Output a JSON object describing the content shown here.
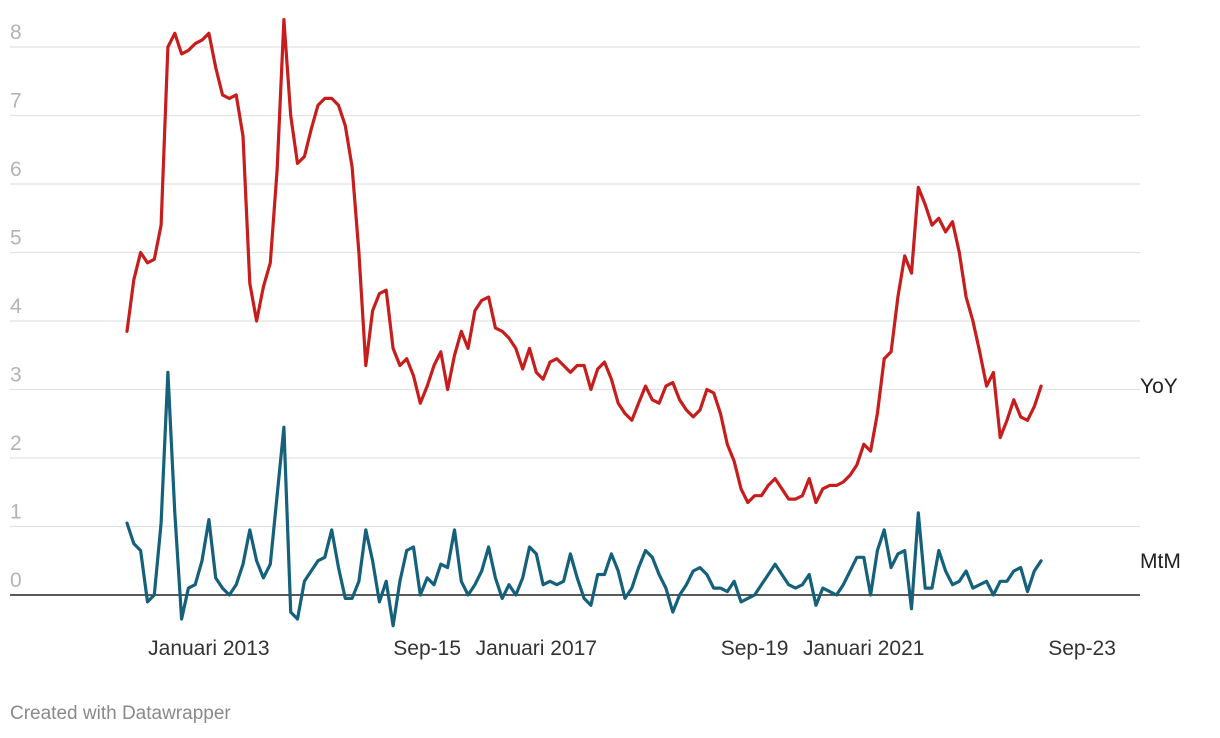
{
  "chart_data": {
    "type": "line",
    "title": "",
    "xlabel": "",
    "ylabel": "",
    "ylim": [
      -0.5,
      8.3
    ],
    "yticks": [
      0,
      1,
      2,
      3,
      4,
      5,
      6,
      7,
      8
    ],
    "grid": true,
    "x_start": "2012-01",
    "x_end": "2024-03",
    "x_tick_labels": [
      {
        "label": "Januari 2013",
        "date": "2013-01"
      },
      {
        "label": "Sep-15",
        "date": "2015-09"
      },
      {
        "label": "Januari 2017",
        "date": "2017-01"
      },
      {
        "label": "Sep-19",
        "date": "2019-09"
      },
      {
        "label": "Januari 2021",
        "date": "2021-01"
      },
      {
        "label": "Sep-23",
        "date": "2023-09"
      }
    ],
    "series": [
      {
        "name": "YoY",
        "color": "#c71e1d",
        "anchors": [
          [
            "2012-01",
            3.85
          ],
          [
            "2012-02",
            4.6
          ],
          [
            "2012-03",
            5.0
          ],
          [
            "2012-04",
            4.85
          ],
          [
            "2012-05",
            4.9
          ],
          [
            "2012-06",
            5.4
          ],
          [
            "2012-07",
            8.0
          ],
          [
            "2012-08",
            8.2
          ],
          [
            "2012-09",
            7.9
          ],
          [
            "2012-10",
            7.95
          ],
          [
            "2012-11",
            8.05
          ],
          [
            "2012-12",
            8.1
          ],
          [
            "2013-01",
            8.2
          ],
          [
            "2013-02",
            7.7
          ],
          [
            "2013-03",
            7.3
          ],
          [
            "2013-04",
            7.25
          ],
          [
            "2013-05",
            7.3
          ],
          [
            "2013-06",
            6.7
          ],
          [
            "2013-07",
            4.55
          ],
          [
            "2013-08",
            4.0
          ],
          [
            "2013-09",
            4.5
          ],
          [
            "2013-10",
            4.85
          ],
          [
            "2013-11",
            6.2
          ],
          [
            "2013-12",
            8.4
          ],
          [
            "2014-01",
            7.0
          ],
          [
            "2014-02",
            6.3
          ],
          [
            "2014-03",
            6.4
          ],
          [
            "2014-04",
            6.8
          ],
          [
            "2014-05",
            7.15
          ],
          [
            "2014-06",
            7.25
          ],
          [
            "2014-07",
            7.25
          ],
          [
            "2014-08",
            7.15
          ],
          [
            "2014-09",
            6.85
          ],
          [
            "2014-10",
            6.25
          ],
          [
            "2014-11",
            5.0
          ],
          [
            "2014-12",
            3.35
          ],
          [
            "2015-01",
            4.15
          ],
          [
            "2015-02",
            4.4
          ],
          [
            "2015-03",
            4.45
          ],
          [
            "2015-04",
            3.6
          ],
          [
            "2015-05",
            3.35
          ],
          [
            "2015-06",
            3.45
          ],
          [
            "2015-07",
            3.2
          ],
          [
            "2015-08",
            2.8
          ],
          [
            "2015-09",
            3.05
          ],
          [
            "2015-10",
            3.35
          ],
          [
            "2015-11",
            3.55
          ],
          [
            "2015-12",
            3.0
          ],
          [
            "2016-01",
            3.5
          ],
          [
            "2016-02",
            3.85
          ],
          [
            "2016-03",
            3.6
          ],
          [
            "2016-04",
            4.15
          ],
          [
            "2016-05",
            4.3
          ],
          [
            "2016-06",
            4.35
          ],
          [
            "2016-07",
            3.9
          ],
          [
            "2016-08",
            3.85
          ],
          [
            "2016-09",
            3.75
          ],
          [
            "2016-10",
            3.6
          ],
          [
            "2016-11",
            3.3
          ],
          [
            "2016-12",
            3.6
          ],
          [
            "2017-01",
            3.25
          ],
          [
            "2017-02",
            3.15
          ],
          [
            "2017-03",
            3.4
          ],
          [
            "2017-04",
            3.45
          ],
          [
            "2017-05",
            3.35
          ],
          [
            "2017-06",
            3.25
          ],
          [
            "2017-07",
            3.35
          ],
          [
            "2017-08",
            3.35
          ],
          [
            "2017-09",
            3.0
          ],
          [
            "2017-10",
            3.3
          ],
          [
            "2017-11",
            3.4
          ],
          [
            "2017-12",
            3.15
          ],
          [
            "2018-01",
            2.8
          ],
          [
            "2018-02",
            2.65
          ],
          [
            "2018-03",
            2.55
          ],
          [
            "2018-04",
            2.8
          ],
          [
            "2018-05",
            3.05
          ],
          [
            "2018-06",
            2.85
          ],
          [
            "2018-07",
            2.8
          ],
          [
            "2018-08",
            3.05
          ],
          [
            "2018-09",
            3.1
          ],
          [
            "2018-10",
            2.85
          ],
          [
            "2018-11",
            2.7
          ],
          [
            "2018-12",
            2.6
          ],
          [
            "2019-01",
            2.7
          ],
          [
            "2019-02",
            3.0
          ],
          [
            "2019-03",
            2.95
          ],
          [
            "2019-04",
            2.65
          ],
          [
            "2019-05",
            2.2
          ],
          [
            "2019-06",
            1.95
          ],
          [
            "2019-07",
            1.55
          ],
          [
            "2019-08",
            1.35
          ],
          [
            "2019-09",
            1.45
          ],
          [
            "2019-10",
            1.45
          ],
          [
            "2019-11",
            1.6
          ],
          [
            "2019-12",
            1.7
          ],
          [
            "2020-01",
            1.55
          ],
          [
            "2020-02",
            1.4
          ],
          [
            "2020-03",
            1.4
          ],
          [
            "2020-04",
            1.45
          ],
          [
            "2020-05",
            1.7
          ],
          [
            "2020-06",
            1.35
          ],
          [
            "2020-07",
            1.55
          ],
          [
            "2020-08",
            1.6
          ],
          [
            "2020-09",
            1.6
          ],
          [
            "2020-10",
            1.65
          ],
          [
            "2020-11",
            1.75
          ],
          [
            "2020-12",
            1.9
          ],
          [
            "2021-01",
            2.2
          ],
          [
            "2021-02",
            2.1
          ],
          [
            "2021-03",
            2.65
          ],
          [
            "2021-04",
            3.45
          ],
          [
            "2021-05",
            3.55
          ],
          [
            "2021-06",
            4.35
          ],
          [
            "2021-07",
            4.95
          ],
          [
            "2021-08",
            4.7
          ],
          [
            "2021-09",
            5.95
          ],
          [
            "2021-10",
            5.7
          ],
          [
            "2021-11",
            5.4
          ],
          [
            "2021-12",
            5.5
          ],
          [
            "2022-01",
            5.3
          ],
          [
            "2022-02",
            5.45
          ],
          [
            "2022-03",
            5.0
          ],
          [
            "2022-04",
            4.35
          ],
          [
            "2022-05",
            4.0
          ],
          [
            "2022-06",
            3.55
          ],
          [
            "2022-07",
            3.05
          ],
          [
            "2022-08",
            3.25
          ],
          [
            "2022-09",
            2.3
          ],
          [
            "2022-10",
            2.55
          ],
          [
            "2022-11",
            2.85
          ],
          [
            "2022-12",
            2.6
          ],
          [
            "2023-01",
            2.55
          ],
          [
            "2023-02",
            2.75
          ],
          [
            "2023-03",
            3.05
          ]
        ]
      },
      {
        "name": "MtM",
        "color": "#15607a",
        "anchors": [
          [
            "2012-01",
            1.05
          ],
          [
            "2012-02",
            0.75
          ],
          [
            "2012-03",
            0.65
          ],
          [
            "2012-04",
            -0.1
          ],
          [
            "2012-05",
            0.0
          ],
          [
            "2012-06",
            1.05
          ],
          [
            "2012-07",
            3.25
          ],
          [
            "2012-08",
            1.2
          ],
          [
            "2012-09",
            -0.35
          ],
          [
            "2012-10",
            0.1
          ],
          [
            "2012-11",
            0.15
          ],
          [
            "2012-12",
            0.5
          ],
          [
            "2013-01",
            1.1
          ],
          [
            "2013-02",
            0.25
          ],
          [
            "2013-03",
            0.1
          ],
          [
            "2013-04",
            0.0
          ],
          [
            "2013-05",
            0.15
          ],
          [
            "2013-06",
            0.45
          ],
          [
            "2013-07",
            0.95
          ],
          [
            "2013-08",
            0.5
          ],
          [
            "2013-09",
            0.25
          ],
          [
            "2013-10",
            0.45
          ],
          [
            "2013-11",
            1.45
          ],
          [
            "2013-12",
            2.45
          ],
          [
            "2014-01",
            -0.25
          ],
          [
            "2014-02",
            -0.35
          ],
          [
            "2014-03",
            0.2
          ],
          [
            "2014-04",
            0.35
          ],
          [
            "2014-05",
            0.5
          ],
          [
            "2014-06",
            0.55
          ],
          [
            "2014-07",
            0.95
          ],
          [
            "2014-08",
            0.4
          ],
          [
            "2014-09",
            -0.05
          ],
          [
            "2014-10",
            -0.05
          ],
          [
            "2014-11",
            0.2
          ],
          [
            "2014-12",
            0.95
          ],
          [
            "2015-01",
            0.5
          ],
          [
            "2015-02",
            -0.1
          ],
          [
            "2015-03",
            0.2
          ],
          [
            "2015-04",
            -0.45
          ],
          [
            "2015-05",
            0.2
          ],
          [
            "2015-06",
            0.65
          ],
          [
            "2015-07",
            0.7
          ],
          [
            "2015-08",
            0.0
          ],
          [
            "2015-09",
            0.25
          ],
          [
            "2015-10",
            0.15
          ],
          [
            "2015-11",
            0.45
          ],
          [
            "2015-12",
            0.4
          ],
          [
            "2016-01",
            0.95
          ],
          [
            "2016-02",
            0.2
          ],
          [
            "2016-03",
            0.0
          ],
          [
            "2016-04",
            0.15
          ],
          [
            "2016-05",
            0.35
          ],
          [
            "2016-06",
            0.7
          ],
          [
            "2016-07",
            0.25
          ],
          [
            "2016-08",
            -0.05
          ],
          [
            "2016-09",
            0.15
          ],
          [
            "2016-10",
            0.0
          ],
          [
            "2016-11",
            0.25
          ],
          [
            "2016-12",
            0.7
          ],
          [
            "2017-01",
            0.6
          ],
          [
            "2017-02",
            0.15
          ],
          [
            "2017-03",
            0.2
          ],
          [
            "2017-04",
            0.15
          ],
          [
            "2017-05",
            0.2
          ],
          [
            "2017-06",
            0.6
          ],
          [
            "2017-07",
            0.25
          ],
          [
            "2017-08",
            -0.05
          ],
          [
            "2017-09",
            -0.15
          ],
          [
            "2017-10",
            0.3
          ],
          [
            "2017-11",
            0.3
          ],
          [
            "2017-12",
            0.6
          ],
          [
            "2018-01",
            0.35
          ],
          [
            "2018-02",
            -0.05
          ],
          [
            "2018-03",
            0.1
          ],
          [
            "2018-04",
            0.4
          ],
          [
            "2018-05",
            0.65
          ],
          [
            "2018-06",
            0.55
          ],
          [
            "2018-07",
            0.3
          ],
          [
            "2018-08",
            0.1
          ],
          [
            "2018-09",
            -0.25
          ],
          [
            "2018-10",
            0.0
          ],
          [
            "2018-11",
            0.15
          ],
          [
            "2018-12",
            0.35
          ],
          [
            "2019-01",
            0.4
          ],
          [
            "2019-02",
            0.3
          ],
          [
            "2019-03",
            0.1
          ],
          [
            "2019-04",
            0.1
          ],
          [
            "2019-05",
            0.05
          ],
          [
            "2019-06",
            0.2
          ],
          [
            "2019-07",
            -0.1
          ],
          [
            "2019-08",
            -0.05
          ],
          [
            "2019-09",
            0.0
          ],
          [
            "2019-10",
            0.15
          ],
          [
            "2019-11",
            0.3
          ],
          [
            "2019-12",
            0.45
          ],
          [
            "2020-01",
            0.3
          ],
          [
            "2020-02",
            0.15
          ],
          [
            "2020-03",
            0.1
          ],
          [
            "2020-04",
            0.15
          ],
          [
            "2020-05",
            0.3
          ],
          [
            "2020-06",
            -0.15
          ],
          [
            "2020-07",
            0.1
          ],
          [
            "2020-08",
            0.05
          ],
          [
            "2020-09",
            0.0
          ],
          [
            "2020-10",
            0.15
          ],
          [
            "2020-11",
            0.35
          ],
          [
            "2020-12",
            0.55
          ],
          [
            "2021-01",
            0.55
          ],
          [
            "2021-02",
            0.0
          ],
          [
            "2021-03",
            0.65
          ],
          [
            "2021-04",
            0.95
          ],
          [
            "2021-05",
            0.4
          ],
          [
            "2021-06",
            0.6
          ],
          [
            "2021-07",
            0.65
          ],
          [
            "2021-08",
            -0.2
          ],
          [
            "2021-09",
            1.2
          ],
          [
            "2021-10",
            0.1
          ],
          [
            "2021-11",
            0.1
          ],
          [
            "2021-12",
            0.65
          ],
          [
            "2022-01",
            0.35
          ],
          [
            "2022-02",
            0.15
          ],
          [
            "2022-03",
            0.2
          ],
          [
            "2022-04",
            0.35
          ],
          [
            "2022-05",
            0.1
          ],
          [
            "2022-06",
            0.15
          ],
          [
            "2022-07",
            0.2
          ],
          [
            "2022-08",
            0.0
          ],
          [
            "2022-09",
            0.2
          ],
          [
            "2022-10",
            0.2
          ],
          [
            "2022-11",
            0.35
          ],
          [
            "2022-12",
            0.4
          ],
          [
            "2023-01",
            0.05
          ],
          [
            "2023-02",
            0.35
          ],
          [
            "2023-03",
            0.5
          ]
        ]
      }
    ]
  },
  "footer": {
    "credit": "Created with Datawrapper"
  }
}
